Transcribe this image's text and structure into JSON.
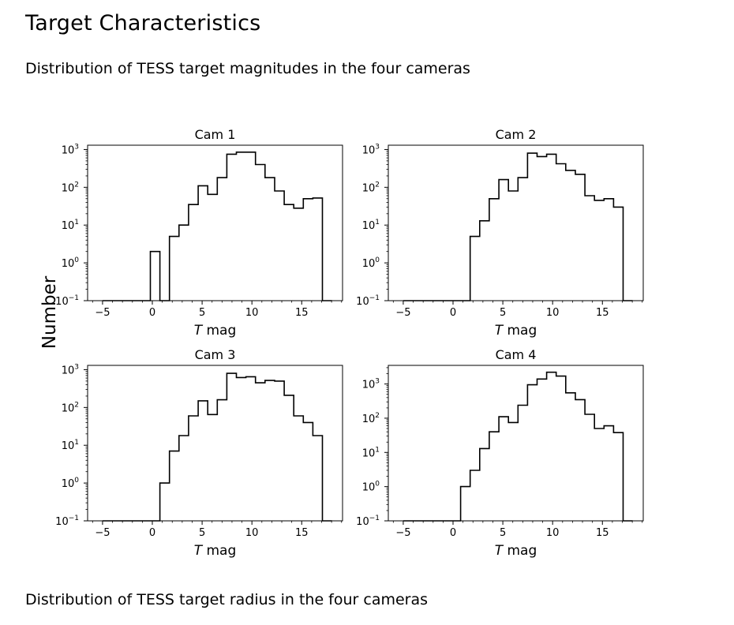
{
  "page": {
    "title": "Target Characteristics",
    "magnitudes_caption": "Distribution of TESS target magnitudes in the four cameras",
    "radius_caption": "Distribution of TESS target radius in the four cameras"
  },
  "figure": {
    "shared_ylabel": "Number"
  },
  "chart_data": [
    {
      "type": "histogram",
      "title": "Cam 1",
      "xlabel_italic": "T",
      "xlabel": " mag",
      "xlim": [
        -6.5,
        19.1
      ],
      "ylim": [
        0.1,
        1300
      ],
      "yscale": "log",
      "grid": false,
      "xticks": [
        -5,
        0,
        5,
        10,
        15
      ],
      "xtick_labels": [
        "−5",
        "0",
        "5",
        "10",
        "15"
      ],
      "yticks": [
        0.1,
        1,
        10,
        100,
        1000
      ],
      "ytick_labels": [
        [
          "10",
          "−1"
        ],
        [
          "10",
          "0"
        ],
        [
          "10",
          "1"
        ],
        [
          "10",
          "2"
        ],
        [
          "10",
          "3"
        ]
      ],
      "bin_edges": [
        -5.0,
        -4.04,
        -3.08,
        -2.12,
        -1.16,
        -0.2,
        0.76,
        1.72,
        2.68,
        3.64,
        4.6,
        5.56,
        6.52,
        7.48,
        8.44,
        9.4,
        10.36,
        11.32,
        12.28,
        13.24,
        14.2,
        15.16,
        16.12,
        17.08,
        18.04
      ],
      "counts": [
        0,
        0,
        0,
        0,
        0,
        2,
        0,
        5,
        10,
        35,
        110,
        65,
        180,
        750,
        850,
        850,
        400,
        180,
        80,
        35,
        28,
        50,
        52,
        0
      ]
    },
    {
      "type": "histogram",
      "title": "Cam 2",
      "xlabel_italic": "T",
      "xlabel": " mag",
      "xlim": [
        -6.5,
        19.1
      ],
      "ylim": [
        0.1,
        1300
      ],
      "yscale": "log",
      "grid": false,
      "xticks": [
        -5,
        0,
        5,
        10,
        15
      ],
      "xtick_labels": [
        "−5",
        "0",
        "5",
        "10",
        "15"
      ],
      "yticks": [
        0.1,
        1,
        10,
        100,
        1000
      ],
      "ytick_labels": [
        [
          "10",
          "−1"
        ],
        [
          "10",
          "0"
        ],
        [
          "10",
          "1"
        ],
        [
          "10",
          "2"
        ],
        [
          "10",
          "3"
        ]
      ],
      "bin_edges": [
        -5.0,
        -4.04,
        -3.08,
        -2.12,
        -1.16,
        -0.2,
        0.76,
        1.72,
        2.68,
        3.64,
        4.6,
        5.56,
        6.52,
        7.48,
        8.44,
        9.4,
        10.36,
        11.32,
        12.28,
        13.24,
        14.2,
        15.16,
        16.12,
        17.08,
        18.04
      ],
      "counts": [
        0,
        0,
        0,
        0,
        0,
        0,
        0,
        5,
        13,
        50,
        160,
        80,
        180,
        800,
        650,
        750,
        420,
        280,
        220,
        60,
        45,
        50,
        30,
        0
      ]
    },
    {
      "type": "histogram",
      "title": "Cam 3",
      "xlabel_italic": "T",
      "xlabel": " mag",
      "xlim": [
        -6.5,
        19.1
      ],
      "ylim": [
        0.1,
        1300
      ],
      "yscale": "log",
      "grid": false,
      "xticks": [
        -5,
        0,
        5,
        10,
        15
      ],
      "xtick_labels": [
        "−5",
        "0",
        "5",
        "10",
        "15"
      ],
      "yticks": [
        0.1,
        1,
        10,
        100,
        1000
      ],
      "ytick_labels": [
        [
          "10",
          "−1"
        ],
        [
          "10",
          "0"
        ],
        [
          "10",
          "1"
        ],
        [
          "10",
          "2"
        ],
        [
          "10",
          "3"
        ]
      ],
      "bin_edges": [
        -5.0,
        -4.04,
        -3.08,
        -2.12,
        -1.16,
        -0.2,
        0.76,
        1.72,
        2.68,
        3.64,
        4.6,
        5.56,
        6.52,
        7.48,
        8.44,
        9.4,
        10.36,
        11.32,
        12.28,
        13.24,
        14.2,
        15.16,
        16.12,
        17.08,
        18.04
      ],
      "counts": [
        0,
        0,
        0,
        0,
        0,
        0,
        1,
        7,
        18,
        60,
        150,
        65,
        160,
        800,
        620,
        650,
        450,
        520,
        500,
        210,
        60,
        40,
        18,
        0
      ]
    },
    {
      "type": "histogram",
      "title": "Cam 4",
      "xlabel_italic": "T",
      "xlabel": " mag",
      "xlim": [
        -6.5,
        19.1
      ],
      "ylim": [
        0.1,
        3500
      ],
      "yscale": "log",
      "grid": false,
      "xticks": [
        -5,
        0,
        5,
        10,
        15
      ],
      "xtick_labels": [
        "−5",
        "0",
        "5",
        "10",
        "15"
      ],
      "yticks": [
        0.1,
        1,
        10,
        100,
        1000
      ],
      "ytick_labels": [
        [
          "10",
          "−1"
        ],
        [
          "10",
          "0"
        ],
        [
          "10",
          "1"
        ],
        [
          "10",
          "2"
        ],
        [
          "10",
          "3"
        ]
      ],
      "bin_edges": [
        -5.0,
        -4.04,
        -3.08,
        -2.12,
        -1.16,
        -0.2,
        0.76,
        1.72,
        2.68,
        3.64,
        4.6,
        5.56,
        6.52,
        7.48,
        8.44,
        9.4,
        10.36,
        11.32,
        12.28,
        13.24,
        14.2,
        15.16,
        16.12,
        17.08,
        18.04
      ],
      "counts": [
        0,
        0,
        0,
        0,
        0,
        0,
        1,
        3,
        13,
        40,
        110,
        75,
        240,
        950,
        1400,
        2200,
        1700,
        550,
        350,
        130,
        50,
        60,
        38,
        0
      ]
    }
  ]
}
